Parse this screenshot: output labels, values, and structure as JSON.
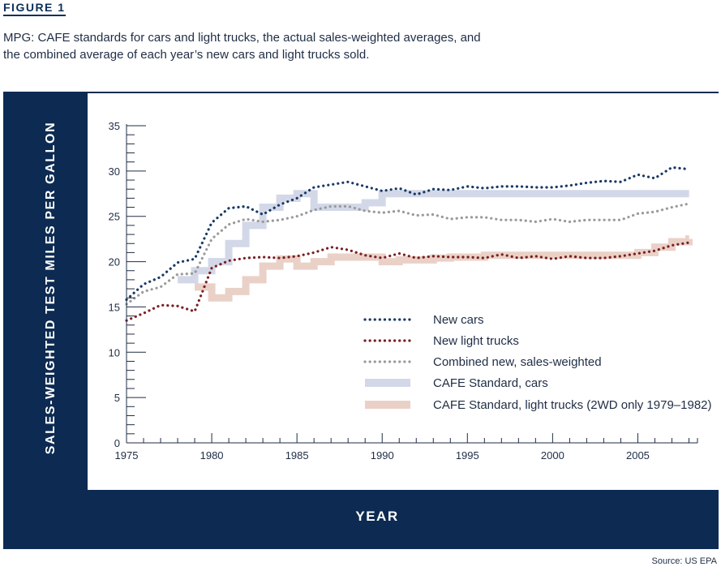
{
  "figure_label": "FIGURE 1",
  "caption": [
    "MPG: CAFE standards for cars and light trucks, the actual sales-weighted averages, and",
    "the combined average of each year’s new cars and light trucks sold."
  ],
  "source": "Source: US EPA",
  "colors": {
    "frame": "#0d2b52",
    "new_cars": "#1a3a66",
    "new_light_trucks": "#7a1f24",
    "combined": "#9a9a9a",
    "cafe_cars": "#d3d8e8",
    "cafe_trucks": "#ead1c7"
  },
  "chart_data": {
    "type": "line",
    "xlabel": "YEAR",
    "ylabel": "SALES-WEIGHTED TEST MILES PER GALLON",
    "xlim": [
      1975,
      2008.5
    ],
    "ylim": [
      0,
      35
    ],
    "x_ticks": [
      1975,
      1980,
      1985,
      1990,
      1995,
      2000,
      2005
    ],
    "y_ticks": [
      0,
      5,
      10,
      15,
      20,
      25,
      30,
      35
    ],
    "grid": false,
    "legend_position": "lower-right",
    "series": [
      {
        "name": "New cars",
        "style": "dotted",
        "color_key": "new_cars",
        "x": [
          1975,
          1976,
          1977,
          1978,
          1979,
          1980,
          1981,
          1982,
          1983,
          1984,
          1985,
          1986,
          1987,
          1988,
          1989,
          1990,
          1991,
          1992,
          1993,
          1994,
          1995,
          1996,
          1997,
          1998,
          1999,
          2000,
          2001,
          2002,
          2003,
          2004,
          2005,
          2006,
          2007,
          2008
        ],
        "y": [
          15.8,
          17.5,
          18.3,
          19.9,
          20.3,
          24.3,
          25.9,
          26.1,
          25.2,
          26.3,
          27.0,
          28.2,
          28.5,
          28.8,
          28.3,
          27.8,
          28.1,
          27.4,
          28.0,
          27.9,
          28.3,
          28.1,
          28.3,
          28.3,
          28.2,
          28.2,
          28.4,
          28.7,
          28.9,
          28.8,
          29.6,
          29.2,
          30.4,
          30.2
        ]
      },
      {
        "name": "New light trucks",
        "style": "dotted",
        "color_key": "new_light_trucks",
        "x": [
          1975,
          1976,
          1977,
          1978,
          1979,
          1980,
          1981,
          1982,
          1983,
          1984,
          1985,
          1986,
          1987,
          1988,
          1989,
          1990,
          1991,
          1992,
          1993,
          1994,
          1995,
          1996,
          1997,
          1998,
          1999,
          2000,
          2001,
          2002,
          2003,
          2004,
          2005,
          2006,
          2007,
          2008
        ],
        "y": [
          13.5,
          14.3,
          15.2,
          15.1,
          14.5,
          19.3,
          20.1,
          20.4,
          20.5,
          20.4,
          20.6,
          21.0,
          21.6,
          21.3,
          20.7,
          20.4,
          20.9,
          20.4,
          20.6,
          20.5,
          20.5,
          20.4,
          20.8,
          20.4,
          20.6,
          20.3,
          20.6,
          20.4,
          20.4,
          20.6,
          20.9,
          21.2,
          21.8,
          22.1
        ]
      },
      {
        "name": "Combined new, sales-weighted",
        "style": "dotted",
        "color_key": "combined",
        "x": [
          1975,
          1976,
          1977,
          1978,
          1979,
          1980,
          1981,
          1982,
          1983,
          1984,
          1985,
          1986,
          1987,
          1988,
          1989,
          1990,
          1991,
          1992,
          1993,
          1994,
          1995,
          1996,
          1997,
          1998,
          1999,
          2000,
          2001,
          2002,
          2003,
          2004,
          2005,
          2006,
          2007,
          2008
        ],
        "y": [
          15.3,
          16.7,
          17.2,
          18.6,
          18.7,
          22.5,
          24.1,
          24.7,
          24.4,
          24.6,
          25.0,
          25.7,
          26.1,
          26.1,
          25.6,
          25.4,
          25.6,
          25.1,
          25.2,
          24.7,
          24.9,
          24.9,
          24.6,
          24.6,
          24.4,
          24.7,
          24.4,
          24.6,
          24.6,
          24.6,
          25.3,
          25.5,
          26.0,
          26.4
        ]
      },
      {
        "name": "CAFE Standard, cars",
        "style": "step-band",
        "color_key": "cafe_cars",
        "x": [
          1978,
          1979,
          1980,
          1981,
          1982,
          1983,
          1984,
          1985,
          1986,
          1987,
          1989,
          1990,
          2008
        ],
        "y": [
          18.0,
          19.0,
          20.0,
          22.0,
          24.0,
          26.0,
          27.0,
          27.5,
          26.0,
          26.0,
          26.5,
          27.5,
          27.5
        ]
      },
      {
        "name": "CAFE Standard, light trucks (2WD only 1979–1982)",
        "style": "step-band",
        "color_key": "cafe_trucks",
        "x": [
          1979,
          1980,
          1981,
          1982,
          1983,
          1984,
          1985,
          1986,
          1987,
          1990,
          1991,
          1992,
          1993,
          1994,
          1996,
          2005,
          2006,
          2007,
          2008
        ],
        "y": [
          17.2,
          16.0,
          16.7,
          18.0,
          19.5,
          20.3,
          19.5,
          20.0,
          20.5,
          20.0,
          20.2,
          20.2,
          20.4,
          20.5,
          20.7,
          21.0,
          21.6,
          22.2,
          22.5
        ]
      }
    ]
  }
}
